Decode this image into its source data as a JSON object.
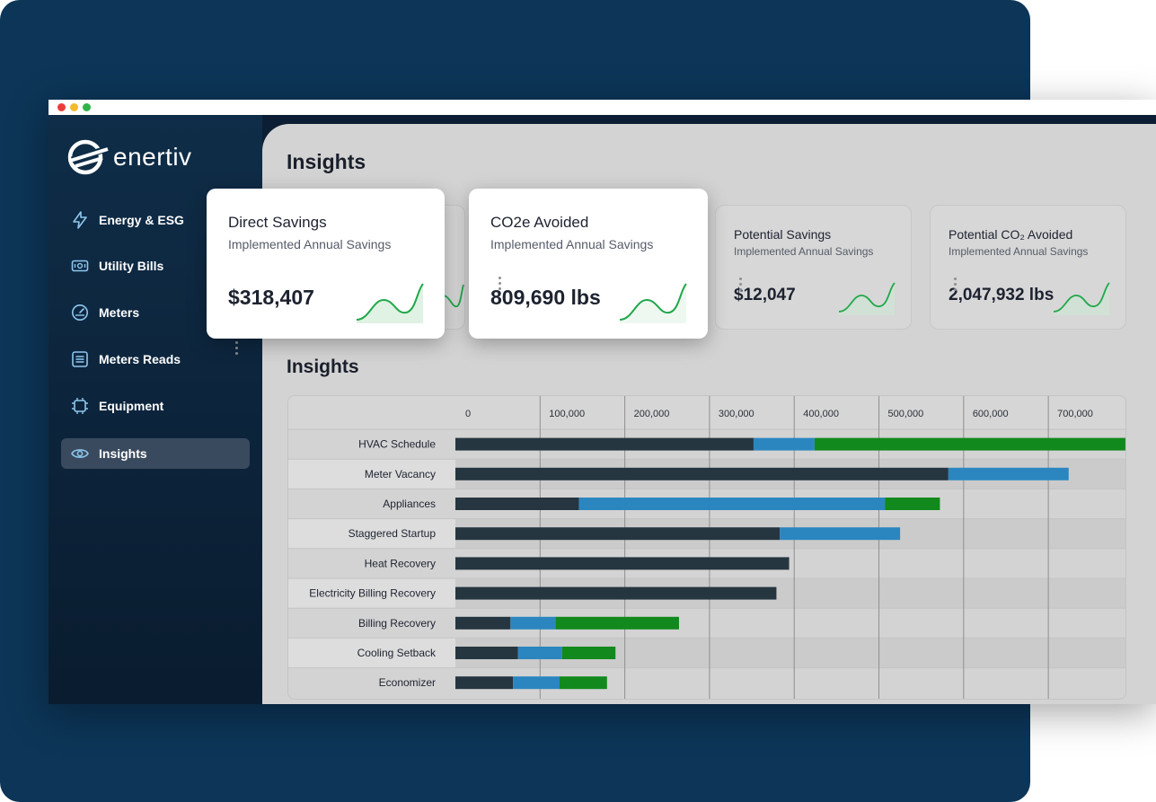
{
  "window": {
    "dots": [
      "#ee3b3b",
      "#f5b82e",
      "#2fb34a"
    ]
  },
  "logo": {
    "text": "enertiv"
  },
  "sidebar": {
    "items": [
      {
        "label": "Energy & ESG",
        "icon": "lightning-icon",
        "active": false
      },
      {
        "label": "Utility Bills",
        "icon": "bill-icon",
        "active": false
      },
      {
        "label": "Meters",
        "icon": "gauge-icon",
        "active": false
      },
      {
        "label": "Meters Reads",
        "icon": "list-icon",
        "active": false
      },
      {
        "label": "Equipment",
        "icon": "chip-icon",
        "active": false
      },
      {
        "label": "Insights",
        "icon": "eye-icon",
        "active": true
      }
    ]
  },
  "main": {
    "title": "Insights",
    "section_title": "Insights",
    "cards": [
      {
        "title": "Potential Savings",
        "subtitle": "Implemented Annual Savings",
        "value": "$12,047"
      },
      {
        "title": "Potential CO₂ Avoided",
        "subtitle": "Implemented Annual Savings",
        "value": "2,047,932 lbs"
      }
    ],
    "popups": [
      {
        "title": "Direct Savings",
        "subtitle": "Implemented Annual Savings",
        "value": "$318,407"
      },
      {
        "title": "CO2e Avoided",
        "subtitle": "Implemented Annual Savings",
        "value": "809,690 lbs"
      }
    ]
  },
  "colors": {
    "series_dark": "#263640",
    "series_blue": "#2b86c0",
    "series_green": "#12891c",
    "sparkline": "#1fa84a"
  },
  "chart_data": {
    "type": "bar",
    "orientation": "horizontal",
    "stacked": true,
    "xlim": [
      0,
      790000
    ],
    "x_ticks": [
      0,
      100000,
      200000,
      300000,
      400000,
      500000,
      600000,
      700000
    ],
    "x_tick_labels": [
      "0",
      "100,000",
      "200,000",
      "300,000",
      "400,000",
      "500,000",
      "600,000",
      "700,000"
    ],
    "categories": [
      "HVAC Schedule",
      "Meter Vacancy",
      "Appliances",
      "Staggered Startup",
      "Heat Recovery",
      "Electricity Billing Recovery",
      "Billing Recovery",
      "Cooling Setback",
      "Economizer"
    ],
    "series": [
      {
        "values": [
          352000,
          582000,
          146000,
          383000,
          394000,
          379000,
          65000,
          74000,
          68000
        ]
      },
      {
        "values": [
          72000,
          142000,
          361000,
          142000,
          0,
          0,
          53000,
          52000,
          55000
        ]
      },
      {
        "values": [
          367000,
          0,
          65000,
          0,
          0,
          0,
          146000,
          63000,
          56000
        ]
      }
    ]
  }
}
